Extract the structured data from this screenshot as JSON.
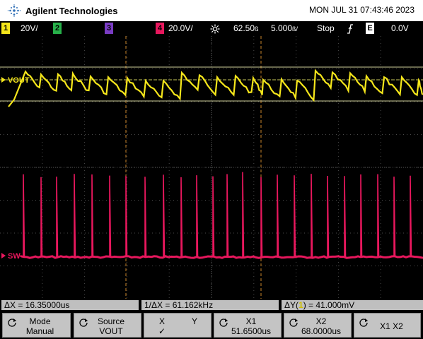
{
  "header": {
    "brand": "Agilent Technologies",
    "datetime": "MON JUL 31 07:43:46 2023"
  },
  "status": {
    "ch1": {
      "num": "1",
      "scale": "20",
      "unit": "V/"
    },
    "ch2": {
      "num": "2"
    },
    "ch3": {
      "num": "3"
    },
    "ch4": {
      "num": "4",
      "scale": "20.0V/"
    },
    "trigger_delay": "62.50",
    "timebase": "5.000",
    "run_state": "Stop",
    "trigger_mode": {
      "num": "E"
    },
    "trigger_level": "0.0V"
  },
  "trace_labels": {
    "vout": "VOUT",
    "sw": "SW"
  },
  "measurements": {
    "dx": "ΔX = 16.35000us",
    "inv_dx": "1/ΔX = 61.162kHz",
    "dy_prefix": "ΔY(",
    "dy_ch": "1",
    "dy_suffix": ") = 41.000mV"
  },
  "softkeys": [
    {
      "top": "Mode",
      "bottom": "Manual"
    },
    {
      "top": "Source",
      "bottom": "VOUT"
    },
    {
      "top": "X",
      "top2": "Y",
      "bottom": "✓"
    },
    {
      "top": "X1",
      "bottom": "51.6500us"
    },
    {
      "top": "X2",
      "bottom": "68.0000us"
    },
    {
      "top": "X1 X2"
    }
  ],
  "colors": {
    "ch1": "#f5e61b",
    "ch4": "#e8175d",
    "status_ch2": "#27b14a",
    "status_ch3": "#7a3cc4",
    "cursor": "#c8842a",
    "agilent_logo": "#2f6fb6",
    "grid": "#5a5a5a"
  }
}
